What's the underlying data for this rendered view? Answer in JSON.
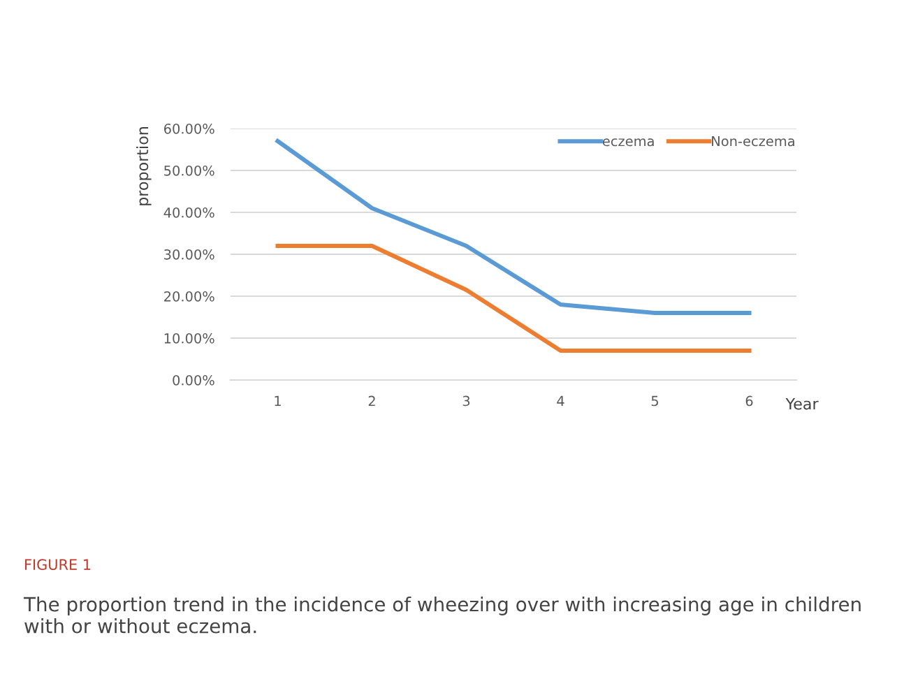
{
  "chart_data": {
    "type": "line",
    "title": "FIGURE 1",
    "xlabel": "Year",
    "ylabel": "proportion",
    "categories": [
      "1",
      "2",
      "3",
      "4",
      "5",
      "6"
    ],
    "series": [
      {
        "name": "eczema",
        "color": "#5b9bd5",
        "values": [
          57,
          41,
          32,
          18,
          16,
          16
        ]
      },
      {
        "name": "Non-eczema",
        "color": "#ed7d31",
        "values": [
          32,
          32,
          21.5,
          7,
          7,
          7
        ]
      }
    ],
    "ylim": [
      0,
      60
    ],
    "yticks": [
      {
        "value": 0,
        "label": "0.00%"
      },
      {
        "value": 10,
        "label": "10.00%"
      },
      {
        "value": 20,
        "label": "20.00%"
      },
      {
        "value": 30,
        "label": "30.00%"
      },
      {
        "value": 40,
        "label": "40.00%"
      },
      {
        "value": 50,
        "label": "50.00%"
      },
      {
        "value": 60,
        "label": "60.00%"
      }
    ],
    "grid": "y",
    "legend": "top right",
    "marker": "none",
    "line_style": "solid",
    "annotations": [
      "The proportion trend in the incidence of wheezing over with increasing age in children with or without eczema."
    ]
  }
}
